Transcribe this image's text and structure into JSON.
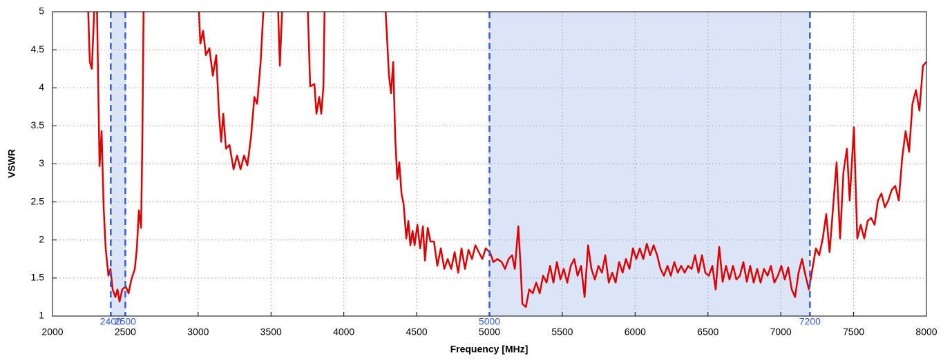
{
  "chart_data": {
    "type": "line",
    "xlabel": "Frequency [MHz]",
    "ylabel": "VSWR",
    "x": [
      2242,
      2256,
      2270,
      2290,
      2304,
      2323,
      2337,
      2351,
      2365,
      2384,
      2398,
      2413,
      2432,
      2446,
      2460,
      2479,
      2503,
      2522,
      2541,
      2565,
      2579,
      2593,
      2608,
      2617,
      2626,
      3001,
      3015,
      3034,
      3053,
      3077,
      3101,
      3124,
      3143,
      3158,
      3172,
      3191,
      3215,
      3243,
      3267,
      3291,
      3315,
      3338,
      3362,
      3386,
      3405,
      3429,
      3453,
      3546,
      3561,
      3580,
      3750,
      3769,
      3798,
      3812,
      3831,
      3845,
      3860,
      3869,
      4282,
      4310,
      4324,
      4339,
      4353,
      4367,
      4381,
      4396,
      4410,
      4429,
      4443,
      4457,
      4472,
      4486,
      4505,
      4524,
      4543,
      4557,
      4576,
      4595,
      4619,
      4642,
      4666,
      4690,
      4713,
      4737,
      4761,
      4785,
      4808,
      4832,
      4856,
      4880,
      4903,
      4927,
      4951,
      4974,
      5003,
      5027,
      5055,
      5084,
      5107,
      5131,
      5155,
      5174,
      5198,
      5212,
      5226,
      5250,
      5273,
      5297,
      5321,
      5345,
      5368,
      5392,
      5416,
      5439,
      5463,
      5487,
      5510,
      5534,
      5558,
      5582,
      5605,
      5629,
      5653,
      5677,
      5700,
      5724,
      5748,
      5772,
      5795,
      5819,
      5843,
      5866,
      5890,
      5914,
      5937,
      5961,
      5985,
      6008,
      6032,
      6056,
      6080,
      6103,
      6127,
      6151,
      6174,
      6198,
      6222,
      6245,
      6269,
      6293,
      6316,
      6340,
      6364,
      6388,
      6411,
      6435,
      6459,
      6482,
      6506,
      6530,
      6553,
      6577,
      6601,
      6624,
      6648,
      6672,
      6695,
      6719,
      6743,
      6767,
      6790,
      6814,
      6838,
      6861,
      6885,
      6909,
      6932,
      6956,
      6980,
      7004,
      7027,
      7051,
      7075,
      7098,
      7122,
      7146,
      7170,
      7193,
      7217,
      7241,
      7264,
      7288,
      7312,
      7335,
      7359,
      7383,
      7407,
      7430,
      7454,
      7473,
      7502,
      7525,
      7549,
      7573,
      7596,
      7620,
      7644,
      7667,
      7691,
      7715,
      7738,
      7762,
      7786,
      7810,
      7833,
      7857,
      7881,
      7904,
      7928,
      7952,
      7976,
      8000
    ],
    "series": [
      {
        "color": "#dd0000",
        "values": [
          5.2,
          4.34,
          4.25,
          5.2,
          5.2,
          2.97,
          3.43,
          2.43,
          1.89,
          1.53,
          1.62,
          1.35,
          1.25,
          1.35,
          1.19,
          1.35,
          1.39,
          1.3,
          1.48,
          1.62,
          1.89,
          2.39,
          2.16,
          3.34,
          5.2,
          5.2,
          4.58,
          4.75,
          4.43,
          4.52,
          4.16,
          4.43,
          3.66,
          3.29,
          3.66,
          3.2,
          3.25,
          2.93,
          3.11,
          2.93,
          3.11,
          2.98,
          3.34,
          3.88,
          3.79,
          4.34,
          5.2,
          5.2,
          4.29,
          5.2,
          5.2,
          4.02,
          4.05,
          3.66,
          3.88,
          3.66,
          4.02,
          5.2,
          5.2,
          4.16,
          3.93,
          4.34,
          3.34,
          2.8,
          3.02,
          2.61,
          2.48,
          2.02,
          2.25,
          1.93,
          2.12,
          1.93,
          2.2,
          1.89,
          2.18,
          1.73,
          2.16,
          1.98,
          1.98,
          1.66,
          1.89,
          1.62,
          1.75,
          1.62,
          1.84,
          1.57,
          1.89,
          1.62,
          1.87,
          1.75,
          1.93,
          1.84,
          1.75,
          1.89,
          1.84,
          1.71,
          1.75,
          1.71,
          1.62,
          1.75,
          1.8,
          1.62,
          2.18,
          1.71,
          1.16,
          1.12,
          1.35,
          1.3,
          1.44,
          1.3,
          1.53,
          1.44,
          1.66,
          1.44,
          1.71,
          1.48,
          1.62,
          1.44,
          1.66,
          1.75,
          1.53,
          1.66,
          1.25,
          1.93,
          1.62,
          1.48,
          1.66,
          1.57,
          1.8,
          1.44,
          1.57,
          1.44,
          1.71,
          1.57,
          1.75,
          1.62,
          1.89,
          1.75,
          1.89,
          1.75,
          1.95,
          1.8,
          1.93,
          1.8,
          1.62,
          1.53,
          1.66,
          1.53,
          1.71,
          1.57,
          1.66,
          1.57,
          1.66,
          1.62,
          1.8,
          1.57,
          1.8,
          1.57,
          1.53,
          1.66,
          1.35,
          1.91,
          1.45,
          1.66,
          1.48,
          1.66,
          1.48,
          1.53,
          1.71,
          1.45,
          1.66,
          1.44,
          1.62,
          1.44,
          1.62,
          1.53,
          1.66,
          1.44,
          1.53,
          1.66,
          1.48,
          1.64,
          1.35,
          1.25,
          1.57,
          1.75,
          1.53,
          1.35,
          1.62,
          1.89,
          1.8,
          2.02,
          2.34,
          1.84,
          2.43,
          3.02,
          2.02,
          2.89,
          3.2,
          2.52,
          3.48,
          2.02,
          2.2,
          2.02,
          2.25,
          2.29,
          2.2,
          2.52,
          2.61,
          2.43,
          2.52,
          2.66,
          2.71,
          2.52,
          3.07,
          3.43,
          3.16,
          3.79,
          3.97,
          3.7,
          4.29,
          4.34
        ]
      }
    ],
    "xlim": [
      2000,
      8000
    ],
    "ylim": [
      1,
      5
    ],
    "xticks": [
      2000,
      2500,
      3000,
      3500,
      4000,
      4500,
      5000,
      5500,
      6000,
      6500,
      7000,
      7500,
      8000
    ],
    "yticks": [
      1,
      1.5,
      2,
      2.5,
      3,
      3.5,
      4,
      4.5,
      5
    ],
    "grid": true,
    "shaded_ranges": [
      [
        2400,
        2500
      ],
      [
        5000,
        7200
      ]
    ],
    "shade_color": "#dce5f7",
    "marker_color": "#2f5be6"
  }
}
